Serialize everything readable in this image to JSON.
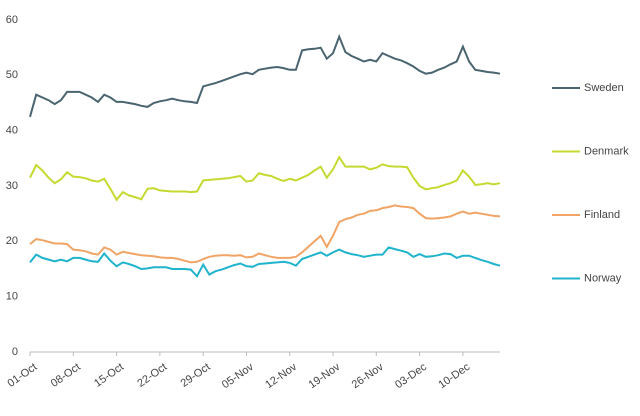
{
  "chart_data": {
    "type": "line",
    "categories": [
      "01-Oct",
      null,
      null,
      null,
      null,
      null,
      null,
      "08-Oct",
      null,
      null,
      null,
      null,
      null,
      null,
      "15-Oct",
      null,
      null,
      null,
      null,
      null,
      null,
      "22-Oct",
      null,
      null,
      null,
      null,
      null,
      null,
      "29-Oct",
      null,
      null,
      null,
      null,
      null,
      null,
      "05-Nov",
      null,
      null,
      null,
      null,
      null,
      null,
      "12-Nov",
      null,
      null,
      null,
      null,
      null,
      null,
      "19-Nov",
      null,
      null,
      null,
      null,
      null,
      null,
      "26-Nov",
      null,
      null,
      null,
      null,
      null,
      null,
      "03-Dec",
      null,
      null,
      null,
      null,
      null,
      null,
      "10-Dec",
      null,
      null,
      null,
      null,
      null,
      null
    ],
    "series": [
      {
        "name": "Sweden",
        "color": "#4a6470",
        "values": [
          42.5,
          46.5,
          46,
          45.5,
          44.8,
          45.5,
          47,
          47,
          47,
          46.5,
          46,
          45.2,
          46.5,
          46,
          45.2,
          45.2,
          45,
          44.8,
          44.5,
          44.3,
          45,
          45.3,
          45.5,
          45.8,
          45.5,
          45.3,
          45.2,
          45,
          48,
          48.3,
          48.6,
          49,
          49.4,
          49.8,
          50.2,
          50.5,
          50.2,
          51,
          51.2,
          51.4,
          51.5,
          51.3,
          51,
          51,
          54.5,
          54.7,
          54.8,
          55,
          53,
          54,
          57,
          54.2,
          53.5,
          53,
          52.5,
          52.8,
          52.5,
          54,
          53.5,
          53,
          52.7,
          52.2,
          51.6,
          50.8,
          50.3,
          50.5,
          51,
          51.4,
          52,
          52.5,
          55.2,
          52.5,
          51,
          50.8,
          50.6,
          50.5,
          50.3
        ]
      },
      {
        "name": "Denmark",
        "color": "#c5d930",
        "values": [
          31.5,
          33.8,
          32.8,
          31.5,
          30.5,
          31.2,
          32.5,
          31.7,
          31.6,
          31.4,
          31,
          30.8,
          31.3,
          29.5,
          27.5,
          28.9,
          28.3,
          28,
          27.6,
          29.5,
          29.6,
          29.2,
          29.1,
          29,
          29,
          29,
          28.9,
          29,
          31,
          31.1,
          31.2,
          31.3,
          31.4,
          31.6,
          31.8,
          30.8,
          31,
          32.3,
          32,
          31.8,
          31.3,
          30.9,
          31.3,
          31,
          31.5,
          32,
          32.8,
          33.5,
          31.5,
          33,
          35.2,
          33.5,
          33.5,
          33.5,
          33.5,
          33,
          33.3,
          33.9,
          33.6,
          33.5,
          33.5,
          33.4,
          31.5,
          30,
          29.4,
          29.6,
          29.8,
          30.2,
          30.5,
          31,
          32.8,
          31.7,
          30.2,
          30.3,
          30.5,
          30.3,
          30.5
        ]
      },
      {
        "name": "Finland",
        "color": "#f0a466",
        "values": [
          19.5,
          20.4,
          20.2,
          19.9,
          19.6,
          19.6,
          19.5,
          18.5,
          18.4,
          18.2,
          17.8,
          17.6,
          18.9,
          18.5,
          17.6,
          18.1,
          17.9,
          17.7,
          17.5,
          17.4,
          17.3,
          17.1,
          17,
          17,
          16.8,
          16.5,
          16.2,
          16.3,
          16.8,
          17.2,
          17.4,
          17.5,
          17.5,
          17.4,
          17.5,
          17.1,
          17.2,
          17.8,
          17.5,
          17.2,
          17,
          17,
          17,
          17.2,
          18,
          19,
          20,
          21,
          19,
          21,
          23.5,
          24,
          24.3,
          24.8,
          25,
          25.5,
          25.6,
          26,
          26.2,
          26.5,
          26.3,
          26.2,
          26,
          25,
          24.2,
          24.1,
          24.2,
          24.3,
          24.5,
          25,
          25.4,
          25,
          25.2,
          25,
          24.8,
          24.6,
          24.5
        ]
      },
      {
        "name": "Norway",
        "color": "#1fb3cc",
        "values": [
          16.2,
          17.6,
          17,
          16.7,
          16.4,
          16.7,
          16.4,
          17,
          17,
          16.7,
          16.4,
          16.3,
          17.8,
          16.5,
          15.5,
          16.2,
          15.9,
          15.5,
          15,
          15.1,
          15.3,
          15.3,
          15.3,
          15,
          15,
          15,
          14.9,
          13.7,
          15.8,
          14,
          14.6,
          14.9,
          15.3,
          15.7,
          16,
          15.5,
          15.4,
          15.9,
          16,
          16.1,
          16.2,
          16.3,
          16.1,
          15.6,
          16.8,
          17.2,
          17.6,
          18,
          17.4,
          18,
          18.5,
          18,
          17.7,
          17.5,
          17.2,
          17.4,
          17.6,
          17.6,
          18.9,
          18.6,
          18.3,
          18,
          17.2,
          17.7,
          17.2,
          17.3,
          17.5,
          17.8,
          17.7,
          17,
          17.4,
          17.4,
          17,
          16.6,
          16.3,
          15.9,
          15.6
        ]
      }
    ],
    "ylim": [
      0,
      60
    ],
    "yticks": [
      0,
      10,
      20,
      30,
      40,
      50,
      60
    ],
    "grid": false,
    "legend": "right"
  }
}
